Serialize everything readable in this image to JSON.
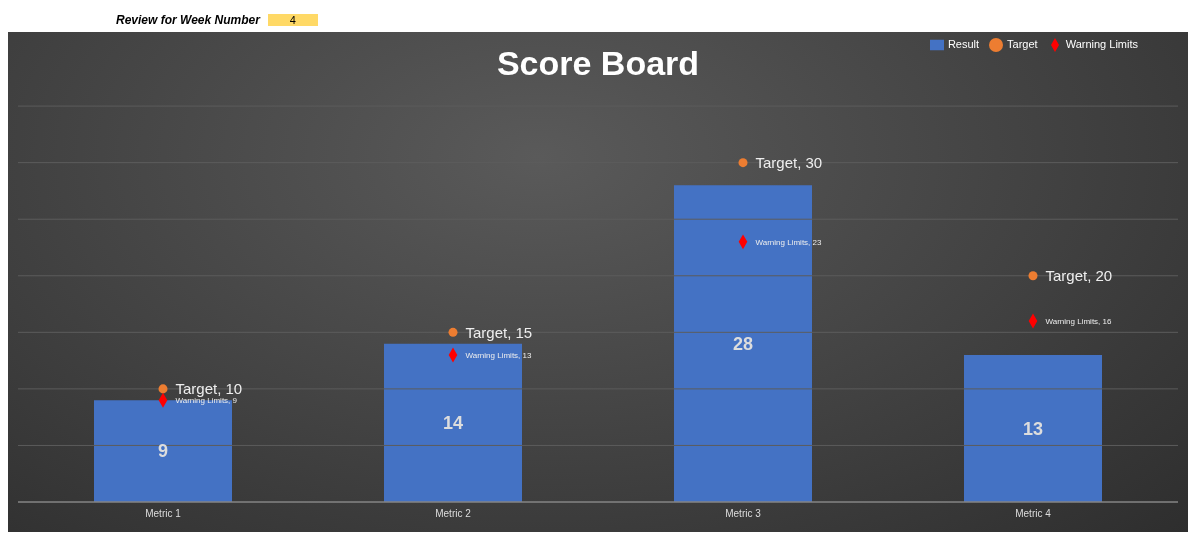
{
  "chart_data": {
    "type": "bar",
    "title": "Score Board",
    "annotations": [
      "Review for Week Number",
      "4"
    ],
    "categories": [
      "Metric 1",
      "Metric 2",
      "Metric 3",
      "Metric 4"
    ],
    "series": [
      {
        "name": "Result",
        "color": "#4472c4",
        "values": [
          9,
          14,
          28,
          13
        ],
        "value_labels": [
          "9",
          "14",
          "28",
          "13"
        ]
      },
      {
        "name": "Target",
        "type": "scatter",
        "marker": "circle",
        "color": "#ed7d31",
        "values": [
          10,
          15,
          30,
          20
        ],
        "value_labels": [
          "Target, 10",
          "Target, 15",
          "Target, 30",
          "Target, 20"
        ]
      },
      {
        "name": "Warning Limits",
        "type": "scatter",
        "marker": "diamond",
        "color": "#ff0000",
        "values": [
          9,
          13,
          23,
          16
        ],
        "value_labels": [
          "Warning Limits, 9",
          "Warning Limits, 13",
          "Warning Limits, 23",
          "Warning Limits, 16"
        ]
      }
    ],
    "ylim": [
      0,
      35
    ],
    "yticks": [
      {
        "value": 0,
        "label": null
      },
      {
        "value": 5,
        "label": null
      },
      {
        "value": 10,
        "label": null
      },
      {
        "value": 15,
        "label": null
      },
      {
        "value": 20,
        "label": null
      },
      {
        "value": 25,
        "label": null
      },
      {
        "value": 30,
        "label": null
      },
      {
        "value": 35,
        "label": null
      }
    ],
    "tick_labels": "x",
    "grid": "y",
    "legend": "top right"
  }
}
